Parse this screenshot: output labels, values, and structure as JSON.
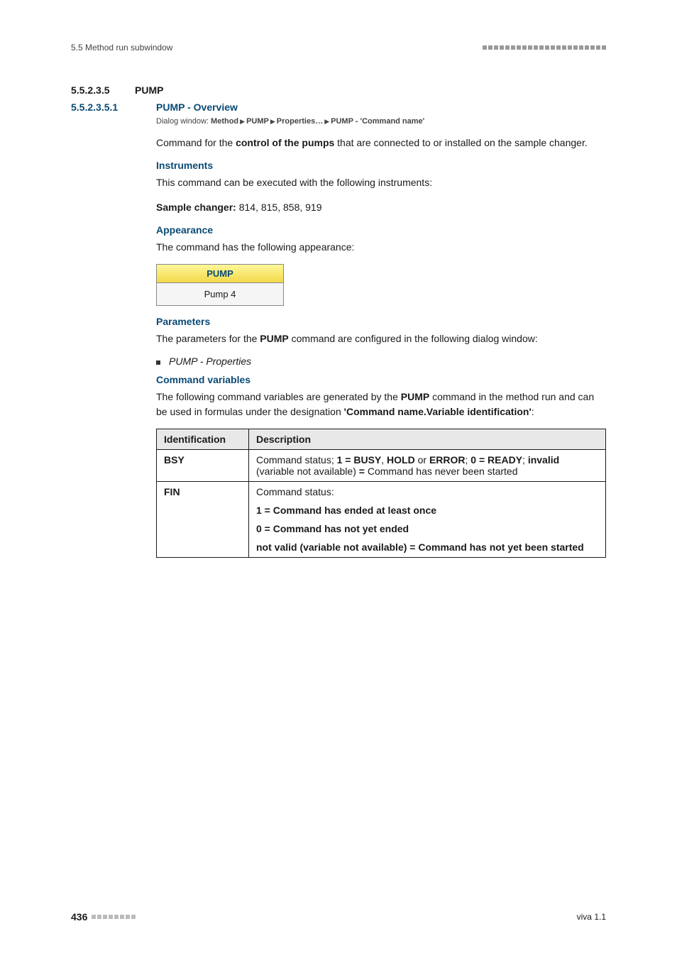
{
  "header": {
    "left": "5.5 Method run subwindow"
  },
  "sec": {
    "num": "5.5.2.3.5",
    "title": "PUMP"
  },
  "subsec": {
    "num": "5.5.2.3.5.1",
    "title": "PUMP - Overview"
  },
  "dialog": {
    "prefix": "Dialog window: ",
    "p1": "Method",
    "p2": "PUMP",
    "p3": "Properties…",
    "p4": "PUMP - 'Command name'"
  },
  "intro": {
    "t1": "Command for the ",
    "bold": "control of the pumps",
    "t2": " that are connected to or installed on the sample changer."
  },
  "instruments": {
    "heading": "Instruments",
    "line": "This command can be executed with the following instruments:",
    "label": "Sample changer:",
    "value": " 814, 815, 858, 919"
  },
  "appearance": {
    "heading": "Appearance",
    "line": "The command has the following appearance:",
    "box_header": "PUMP",
    "box_body": "Pump 4"
  },
  "parameters": {
    "heading": "Parameters",
    "t1": "The parameters for the ",
    "bold": "PUMP",
    "t2": " command are configured in the following dialog window:",
    "bullet": "PUMP - Properties"
  },
  "cmdvars": {
    "heading": "Command variables",
    "t1": "The following command variables are generated by the ",
    "bold1": "PUMP",
    "t2": " command in the method run and can be used in formulas under the designation ",
    "bold2": "'Command name.Variable identification'",
    "t3": ":"
  },
  "table": {
    "h1": "Identification",
    "h2": "Description",
    "rows": [
      {
        "id": "BSY",
        "d1": "Command status; ",
        "b1": "1 = BUSY",
        "d2": ", ",
        "b2": "HOLD",
        "d3": " or ",
        "b3": "ERROR",
        "d4": "; ",
        "b4": "0 = READY",
        "d5": "; ",
        "b5": "invalid",
        "d6": " (variable not available) ",
        "b6": "=",
        "d7": " Command has never been started"
      },
      {
        "id": "FIN",
        "l1": "Command status:",
        "l2": "1 = Command has ended at least once",
        "l3": "0 = Command has not yet ended",
        "l4": "not valid (variable not available) = Command has not yet been started"
      }
    ]
  },
  "footer": {
    "page": "436",
    "right": "viva 1.1"
  }
}
